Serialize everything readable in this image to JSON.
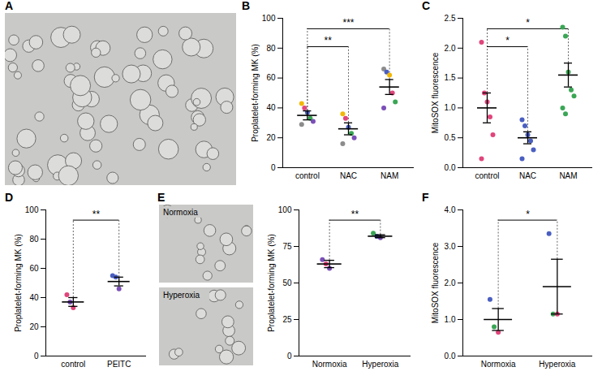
{
  "chart_data": [
    {
      "panel": "A",
      "type": "image"
    },
    {
      "panel": "B",
      "type": "scatter",
      "ylabel": "Proplatelet-forming MK (%)",
      "categories": [
        "control",
        "NAC",
        "NAM"
      ],
      "values": [
        [
          43,
          40,
          37,
          33,
          31,
          29
        ],
        [
          36,
          33,
          27,
          23,
          20,
          16
        ],
        [
          66,
          64,
          62,
          50,
          44,
          40
        ]
      ],
      "colors": [
        [
          "#f2b705",
          "#e0457b",
          "#4a5fc1",
          "#3aa655",
          "#7b4fb8",
          "#8c8c8c"
        ],
        [
          "#f2b705",
          "#e0457b",
          "#4a5fc1",
          "#3aa655",
          "#7b4fb8",
          "#8c8c8c"
        ],
        [
          "#8c8c8c",
          "#4a5fc1",
          "#f2b705",
          "#e0457b",
          "#3aa655",
          "#7b4fb8"
        ]
      ],
      "means": [
        35,
        26,
        54
      ],
      "errors": [
        3,
        4,
        5
      ],
      "ylim": [
        0,
        100
      ],
      "yticks": [
        0,
        20,
        40,
        60,
        80,
        100
      ],
      "comparisons": [
        {
          "groups": [
            "control",
            "NAC"
          ],
          "label": "**"
        },
        {
          "groups": [
            "control",
            "NAM"
          ],
          "label": "***"
        }
      ]
    },
    {
      "panel": "C",
      "type": "scatter",
      "ylabel": "MitoSOX fluorescence",
      "categories": [
        "control",
        "NAC",
        "NAM"
      ],
      "values": [
        [
          2.1,
          1.25,
          1.1,
          0.85,
          0.55,
          0.15
        ],
        [
          0.8,
          0.7,
          0.55,
          0.45,
          0.3,
          0.15
        ],
        [
          2.35,
          2.2,
          1.6,
          1.3,
          1.2,
          1.0,
          0.9
        ]
      ],
      "colors": [
        [
          "#e0457b",
          "#e0457b",
          "#e0457b",
          "#e0457b",
          "#e0457b",
          "#e0457b"
        ],
        [
          "#4a5fc1",
          "#4a5fc1",
          "#4a5fc1",
          "#4a5fc1",
          "#4a5fc1",
          "#4a5fc1"
        ],
        [
          "#3aa655",
          "#3aa655",
          "#3aa655",
          "#3aa655",
          "#3aa655",
          "#3aa655",
          "#3aa655"
        ]
      ],
      "means": [
        1.0,
        0.5,
        1.55
      ],
      "errors": [
        0.25,
        0.1,
        0.2
      ],
      "ylim": [
        0,
        2.5
      ],
      "yticks": [
        0,
        0.5,
        1,
        1.5,
        2,
        2.5
      ],
      "comparisons": [
        {
          "groups": [
            "control",
            "NAC"
          ],
          "label": "*"
        },
        {
          "groups": [
            "control",
            "NAM"
          ],
          "label": "*"
        }
      ]
    },
    {
      "panel": "D",
      "type": "scatter",
      "ylabel": "Proplatelet-forming MK (%)",
      "categories": [
        "control",
        "PEITC"
      ],
      "values": [
        [
          42,
          37,
          33
        ],
        [
          55,
          54,
          46
        ]
      ],
      "colors": [
        [
          "#e0457b",
          "#7b4fb8",
          "#e0457b"
        ],
        [
          "#4a5fc1",
          "#4a5fc1",
          "#7b4fb8"
        ]
      ],
      "means": [
        37,
        51
      ],
      "errors": [
        3,
        3
      ],
      "ylim": [
        0,
        100
      ],
      "yticks": [
        0,
        20,
        40,
        60,
        80,
        100
      ],
      "comparisons": [
        {
          "groups": [
            "control",
            "PEITC"
          ],
          "label": "**"
        }
      ]
    },
    {
      "panel": "E",
      "type": "scatter",
      "ylabel": "Proplatelet-forming MK (%)",
      "image_labels": [
        "Normoxia",
        "Hyperoxia"
      ],
      "categories": [
        "Normoxia",
        "Hyperoxia"
      ],
      "values": [
        [
          66,
          63,
          60
        ],
        [
          84,
          82,
          81
        ]
      ],
      "colors": [
        [
          "#7b4fb8",
          "#e0457b",
          "#7b4fb8"
        ],
        [
          "#3aa655",
          "#4a5fc1",
          "#7b4fb8"
        ]
      ],
      "means": [
        63,
        82
      ],
      "errors": [
        2.5,
        1
      ],
      "ylim": [
        0,
        100
      ],
      "yticks": [
        0,
        25,
        50,
        75,
        100
      ],
      "comparisons": [
        {
          "groups": [
            "Normoxia",
            "Hyperoxia"
          ],
          "label": "**"
        }
      ]
    },
    {
      "panel": "F",
      "type": "scatter",
      "ylabel": "MitoSOX fluorescence",
      "categories": [
        "Normoxia",
        "Hyperoxia"
      ],
      "values": [
        [
          1.55,
          0.8,
          0.65
        ],
        [
          3.35,
          1.15,
          1.15
        ]
      ],
      "colors": [
        [
          "#4a5fc1",
          "#3aa655",
          "#e0457b"
        ],
        [
          "#4a5fc1",
          "#3aa655",
          "#e0457b"
        ]
      ],
      "means": [
        1.0,
        1.9
      ],
      "errors": [
        0.3,
        0.75
      ],
      "ylim": [
        0,
        4
      ],
      "yticks": [
        0,
        1,
        2,
        3,
        4
      ],
      "comparisons": [
        {
          "groups": [
            "Normoxia",
            "Hyperoxia"
          ],
          "label": "*"
        }
      ]
    }
  ]
}
